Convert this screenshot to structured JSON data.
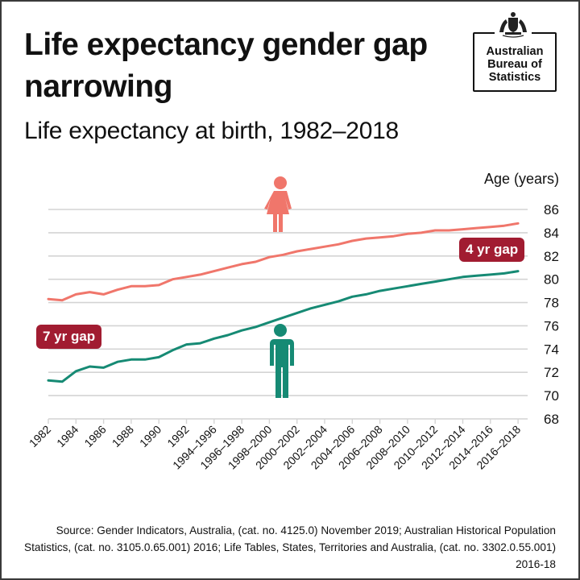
{
  "header": {
    "title": "Life expectancy gender gap narrowing",
    "subtitle": "Life expectancy at birth, 1982–2018"
  },
  "logo": {
    "icon": "coat-of-arms-icon",
    "lines": [
      "Australian",
      "Bureau of",
      "Statistics"
    ]
  },
  "annotations": {
    "gap_start": "7 yr gap",
    "gap_end": "4 yr gap",
    "female_icon": "female-figure-icon",
    "male_icon": "male-figure-icon"
  },
  "colors": {
    "female": "#f0766b",
    "male": "#168a74",
    "badge": "#a11c31",
    "grid": "#d4d4d4"
  },
  "source": "Source: Gender Indicators, Australia, (cat. no. 4125.0) November 2019; Australian Historical Population Statistics, (cat. no. 3105.0.65.001) 2016; Life Tables, States, Territories and Australia, (cat. no. 3302.0.55.001) 2016-18",
  "chart_data": {
    "type": "line",
    "title": "Life expectancy at birth, 1982–2018",
    "xlabel": "",
    "ylabel": "Age (years)",
    "ylim": [
      68,
      86
    ],
    "yticks": [
      68,
      70,
      72,
      74,
      76,
      78,
      80,
      82,
      84,
      86
    ],
    "grid": true,
    "y_axis_position": "right",
    "x_tick_labels": [
      "1982",
      "1984",
      "1986",
      "1988",
      "1990",
      "1992",
      "1994–1996",
      "1996–1998",
      "1998–2000",
      "2000–2002",
      "2002–2004",
      "2004–2006",
      "2006–2008",
      "2008–2010",
      "2010–2012",
      "2012–2014",
      "2014–2016",
      "2016–2018"
    ],
    "x": [
      "1982",
      "1983",
      "1984",
      "1985",
      "1986",
      "1987",
      "1988",
      "1989",
      "1990",
      "1991",
      "1992",
      "1993",
      "1994–1996",
      "1995–1997",
      "1996–1998",
      "1997–1999",
      "1998–2000",
      "1999–2001",
      "2000–2002",
      "2001–2003",
      "2002–2004",
      "2003–2005",
      "2004–2006",
      "2005–2007",
      "2006–2008",
      "2007–2009",
      "2008–2010",
      "2009–2011",
      "2010–2012",
      "2011–2013",
      "2012–2014",
      "2013–2015",
      "2014–2016",
      "2015–2017",
      "2016–2018"
    ],
    "series": [
      {
        "name": "Female",
        "values": [
          78.3,
          78.2,
          78.7,
          78.9,
          78.7,
          79.1,
          79.4,
          79.4,
          79.5,
          80.0,
          80.2,
          80.4,
          80.7,
          81.0,
          81.3,
          81.5,
          81.9,
          82.1,
          82.4,
          82.6,
          82.8,
          83.0,
          83.3,
          83.5,
          83.6,
          83.7,
          83.9,
          84.0,
          84.2,
          84.2,
          84.3,
          84.4,
          84.5,
          84.6,
          84.8
        ]
      },
      {
        "name": "Male",
        "values": [
          71.3,
          71.2,
          72.1,
          72.5,
          72.4,
          72.9,
          73.1,
          73.1,
          73.3,
          73.9,
          74.4,
          74.5,
          74.9,
          75.2,
          75.6,
          75.9,
          76.3,
          76.7,
          77.1,
          77.5,
          77.8,
          78.1,
          78.5,
          78.7,
          79.0,
          79.2,
          79.4,
          79.6,
          79.8,
          80.0,
          80.2,
          80.3,
          80.4,
          80.5,
          80.7
        ]
      }
    ],
    "annotations": [
      {
        "text": "7 yr gap",
        "at": "1982"
      },
      {
        "text": "4 yr gap",
        "at": "2016–2018"
      }
    ]
  }
}
